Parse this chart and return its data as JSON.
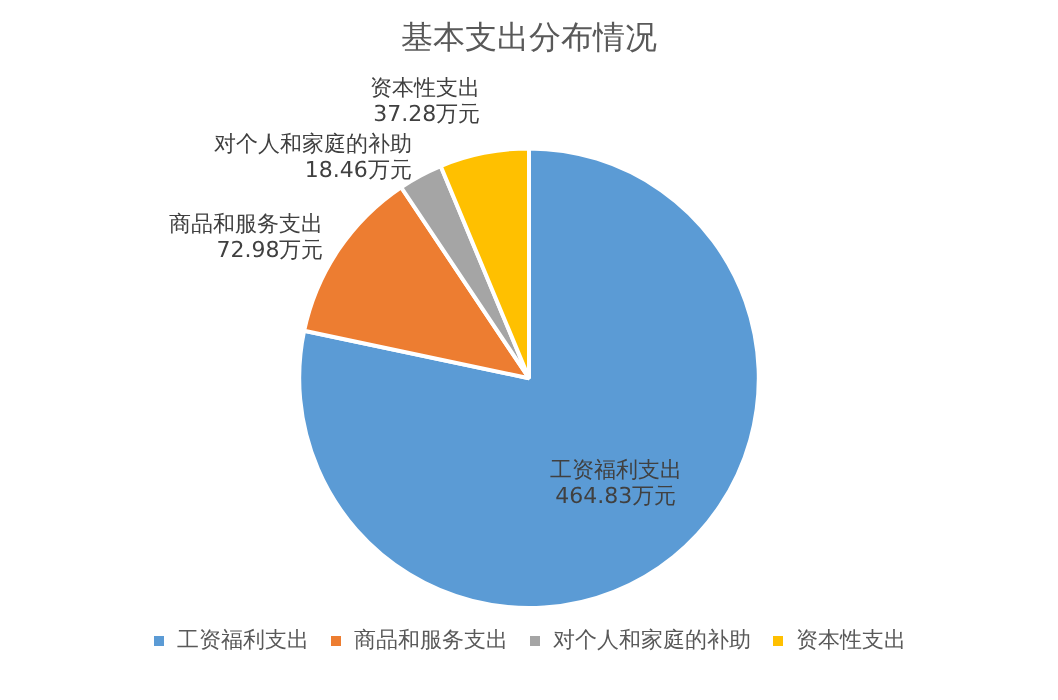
{
  "chart_data": {
    "type": "pie",
    "title": "基本支出分布情况",
    "categories": [
      "工资福利支出",
      "商品和服务支出",
      "对个人和家庭的补助",
      "资本性支出"
    ],
    "values": [
      464.83,
      72.98,
      18.46,
      37.28
    ],
    "value_labels": [
      "464.83万元",
      "72.98万元",
      "18.46万元",
      "37.28万元"
    ],
    "colors": [
      "#5b9bd5",
      "#ed7d31",
      "#a5a5a5",
      "#ffc000"
    ],
    "legend": "bottom"
  }
}
